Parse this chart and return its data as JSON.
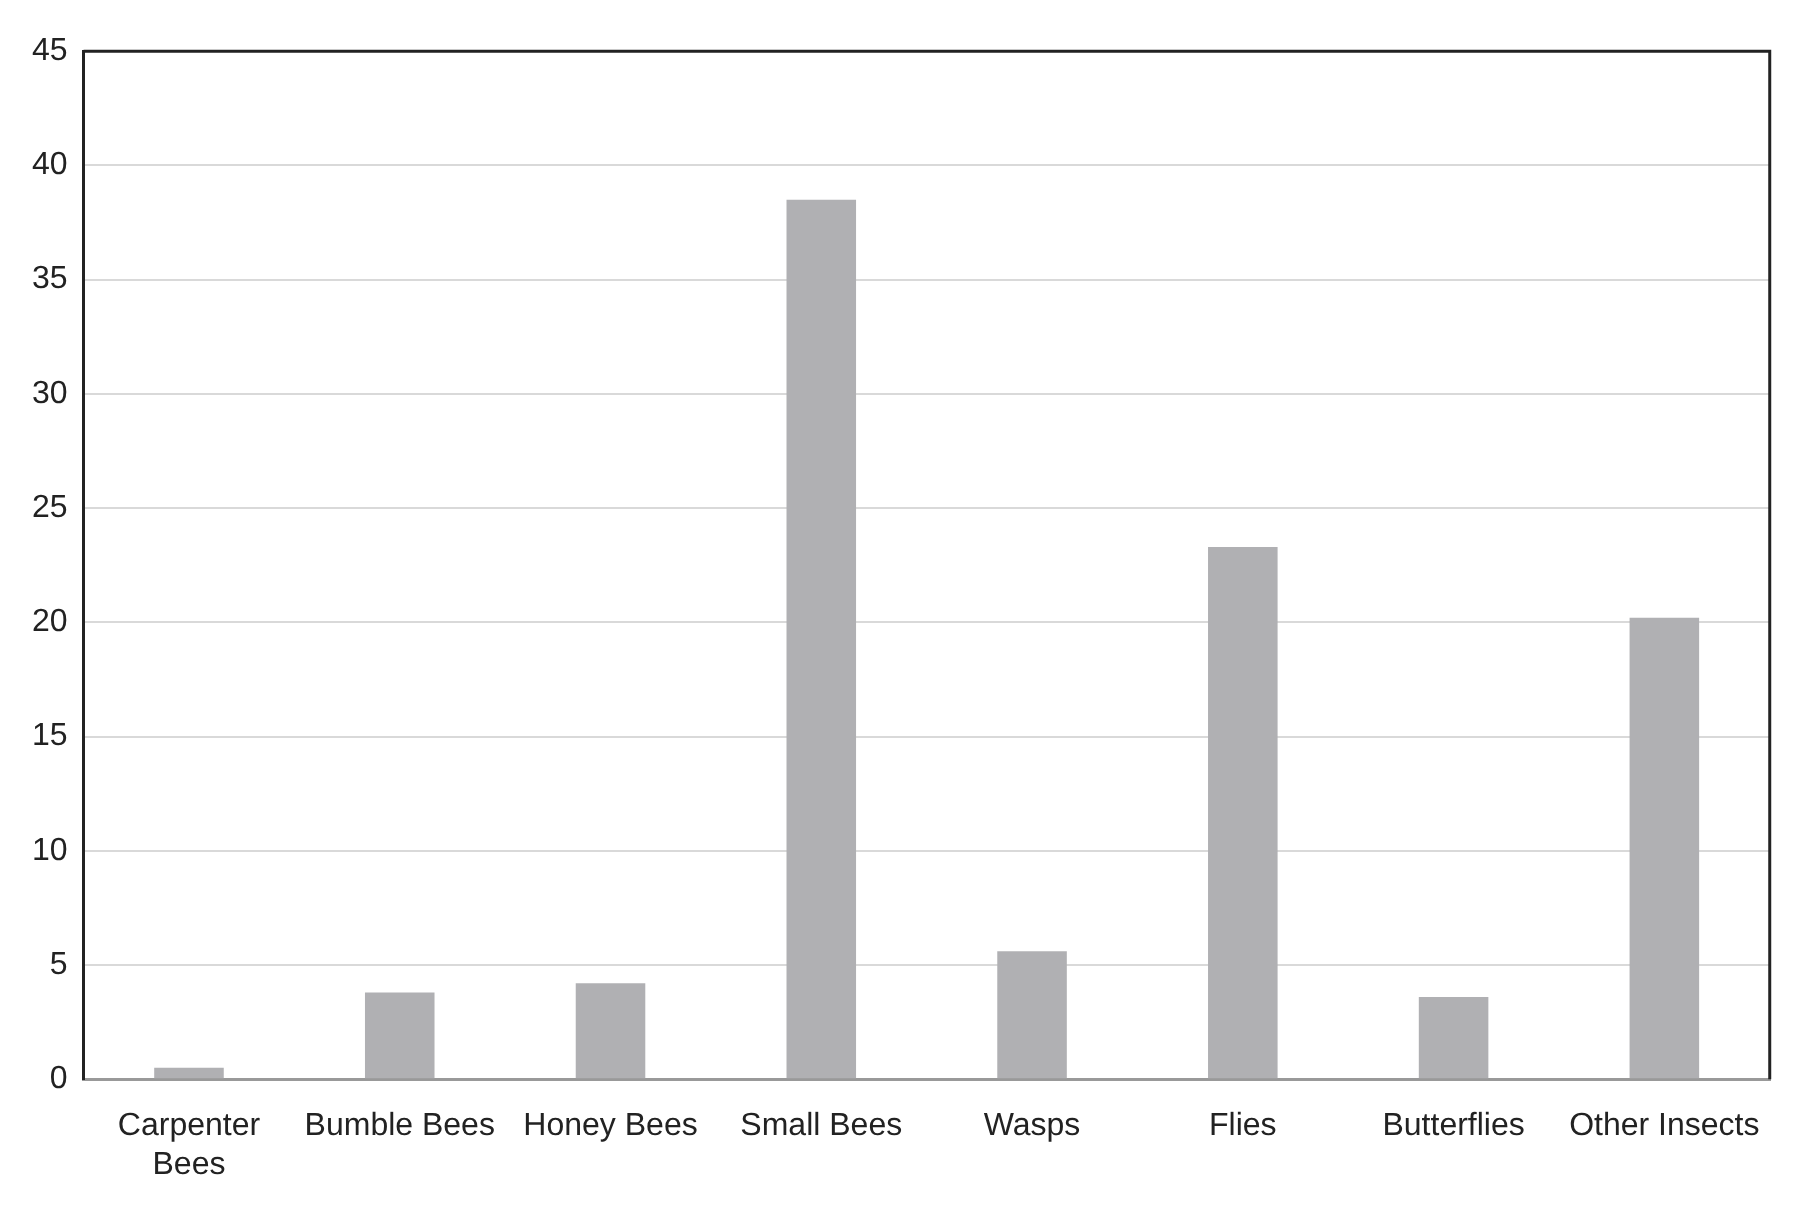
{
  "chart_data": {
    "type": "bar",
    "categories": [
      "Carpenter Bees",
      "Bumble Bees",
      "Honey Bees",
      "Small Bees",
      "Wasps",
      "Flies",
      "Butterflies",
      "Other Insects"
    ],
    "values": [
      0.5,
      3.8,
      4.2,
      38.5,
      5.6,
      23.3,
      3.6,
      20.2
    ],
    "color": "#b0b0b3",
    "ylim": [
      0,
      45
    ],
    "yticks": [
      0,
      5,
      10,
      15,
      20,
      25,
      30,
      35,
      40,
      45
    ],
    "grid": "y",
    "legend": false
  }
}
